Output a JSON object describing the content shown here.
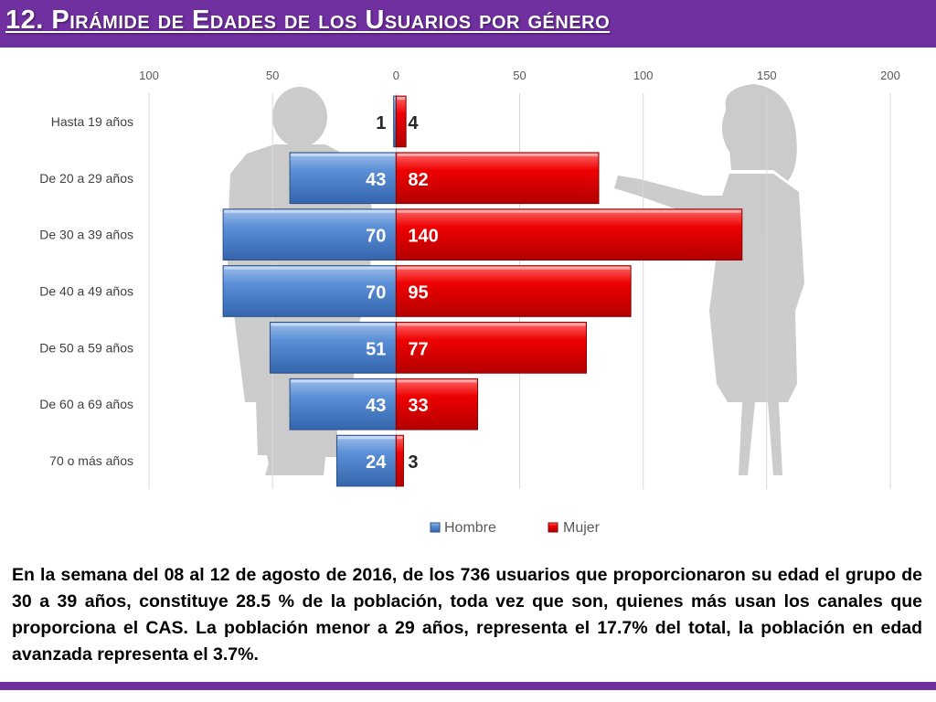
{
  "title": "12. Pirámide de Edades de los Usuarios por género",
  "chart_data": {
    "type": "bar",
    "orientation": "horizontal",
    "categories": [
      "Hasta 19 años",
      "De 20 a 29 años",
      "De 30 a 39 años",
      "De 40 a 49 años",
      "De 50 a 59 años",
      "De 60 a 69 años",
      "70 o más años"
    ],
    "series": [
      {
        "name": "Hombre",
        "values": [
          1,
          43,
          70,
          70,
          51,
          43,
          24
        ],
        "color": "#5b8fd6",
        "direction": "left"
      },
      {
        "name": "Mujer",
        "values": [
          4,
          82,
          140,
          95,
          77,
          33,
          3
        ],
        "color": "#ee0000",
        "direction": "right"
      }
    ],
    "data_labels": [
      {
        "hombre": "1",
        "mujer": "4"
      },
      {
        "hombre": "43",
        "mujer": "82"
      },
      {
        "hombre": "70",
        "mujer": "140"
      },
      {
        "hombre": "70",
        "mujer": "95"
      },
      {
        "hombre": "51",
        "mujer": "77"
      },
      {
        "hombre": "43",
        "mujer": "33"
      },
      {
        "hombre": "24",
        "mujer": "3"
      }
    ],
    "xlim": [
      -100,
      200
    ],
    "ticks": [
      -100,
      -50,
      0,
      50,
      100,
      150,
      200
    ],
    "tick_labels": [
      "100",
      "50",
      "0",
      "50",
      "100",
      "150",
      "200"
    ],
    "grid": true,
    "legend_position": "bottom"
  },
  "description": "En la semana del 08 al 12 de agosto de 2016, de los 736 usuarios  que proporcionaron su edad el grupo de 30 a 39 años,  constituye 28.5 % de la población, toda vez que son, quienes más usan los canales que proporciona el CAS. La población menor a 29 años, representa el 17.7% del total, la población en edad avanzada representa el 3.7%.",
  "colors": {
    "accent": "#7030a0",
    "hombre": "#5b8fd6",
    "mujer": "#ee0000",
    "silhouette": "#c8c8c8"
  }
}
